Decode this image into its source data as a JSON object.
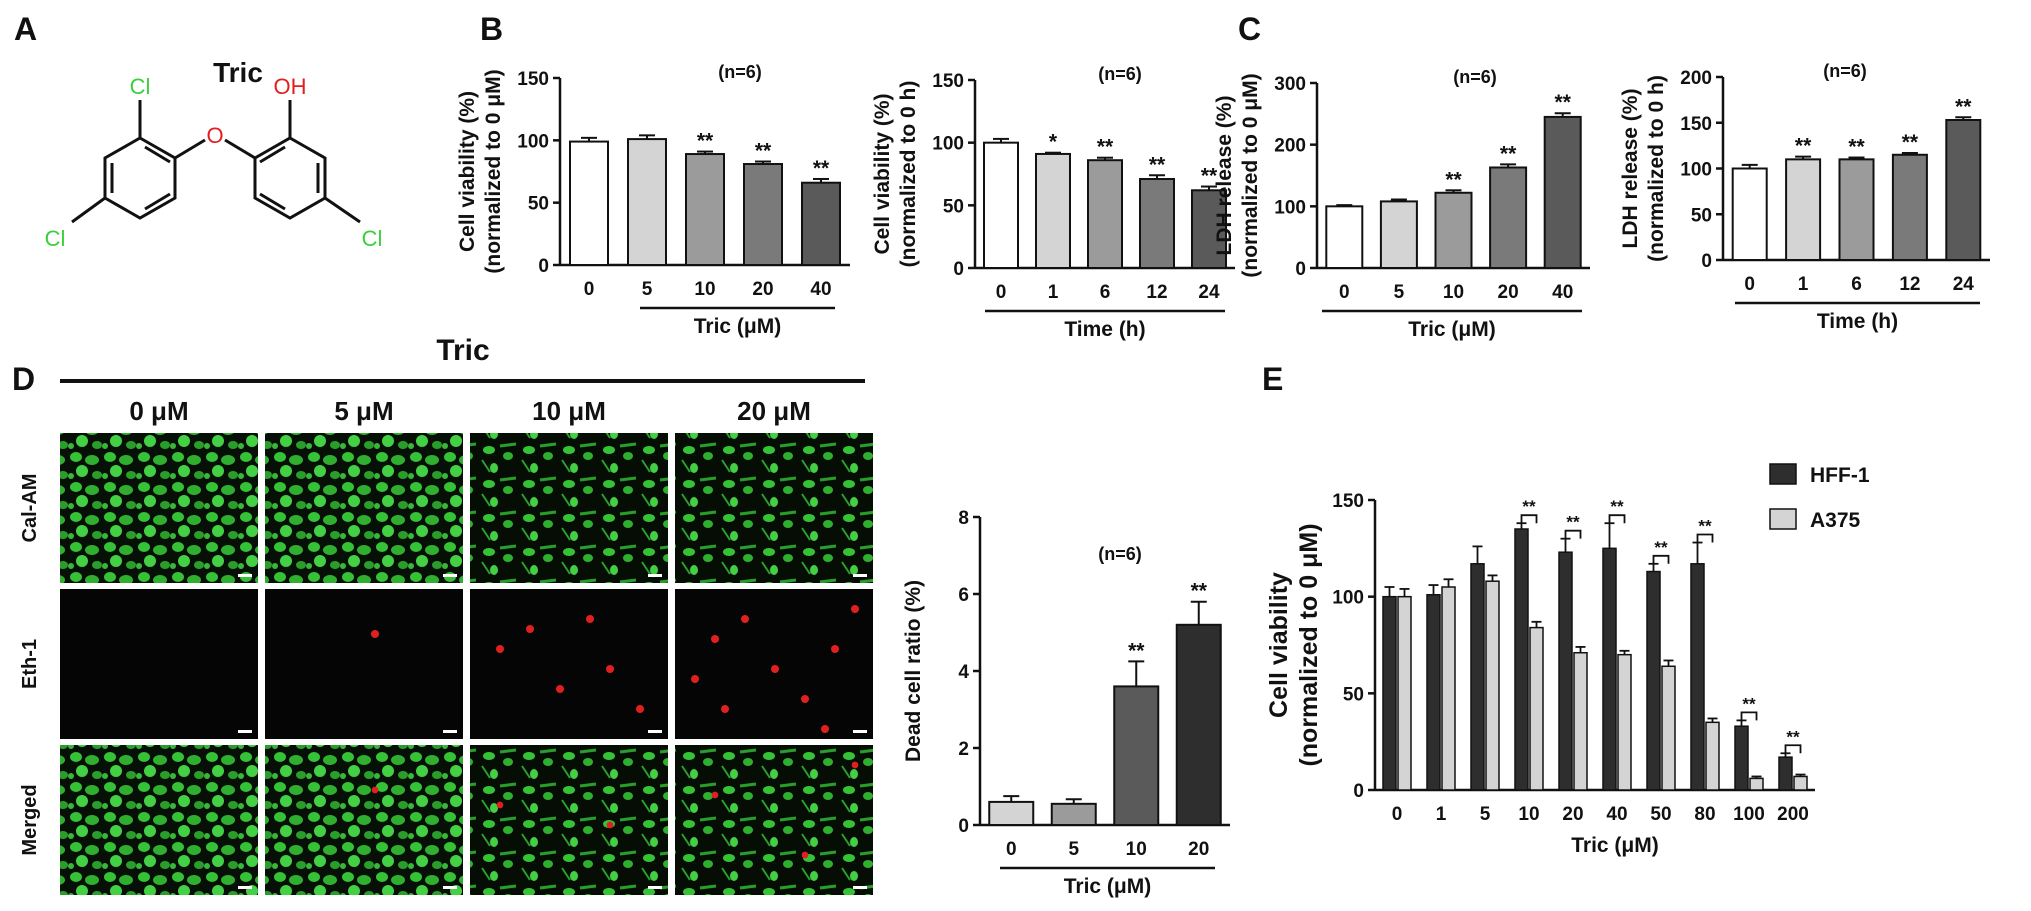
{
  "panels": {
    "A": {
      "letter": "A",
      "title": "Tric",
      "atoms": {
        "cl_top": "Cl",
        "oh": "OH",
        "o": "O",
        "cl_left": "Cl",
        "cl_right": "Cl"
      }
    },
    "B": {
      "letter": "B"
    },
    "C": {
      "letter": "C"
    },
    "D": {
      "letter": "D",
      "treatment": "Tric",
      "columns": [
        "0 μM",
        "5 μM",
        "10 μM",
        "20 μM"
      ],
      "rows": [
        "Cal-AM",
        "Eth-1",
        "Merged"
      ]
    },
    "E": {
      "letter": "E"
    }
  },
  "colors": {
    "white": "#ffffff",
    "light": "#d4d4d4",
    "mid": "#9b9b9b",
    "dark": "#7a7a7a",
    "darker": "#5a5a5a",
    "darkest": "#2e2e2e",
    "green_cl": "#3ccf3c",
    "red_o": "#e02020",
    "micro_green": "#36c236",
    "micro_red": "#e02020"
  },
  "chart_data": [
    {
      "id": "B1",
      "type": "bar",
      "n_label": "(n=6)",
      "categories": [
        "0",
        "5",
        "10",
        "20",
        "40"
      ],
      "values": [
        99,
        101,
        89,
        81,
        66
      ],
      "errors": [
        3,
        3,
        2,
        2,
        3
      ],
      "sig": [
        "",
        "",
        "**",
        "**",
        "**"
      ],
      "colors": [
        "#ffffff",
        "#d4d4d4",
        "#9b9b9b",
        "#7a7a7a",
        "#5a5a5a"
      ],
      "xlabel": "Tric (μM)",
      "ylabel_lines": [
        "Cell viability (%)",
        "(normalized to 0 μM)"
      ],
      "ylim": [
        0,
        150
      ],
      "yticks": [
        0,
        50,
        100,
        150
      ]
    },
    {
      "id": "B2",
      "type": "bar",
      "n_label": "(n=6)",
      "categories": [
        "0",
        "1",
        "6",
        "12",
        "24"
      ],
      "values": [
        100,
        91,
        86,
        71,
        62
      ],
      "errors": [
        3,
        1,
        2,
        3,
        3
      ],
      "sig": [
        "",
        "*",
        "**",
        "**",
        "**"
      ],
      "colors": [
        "#ffffff",
        "#d4d4d4",
        "#9b9b9b",
        "#7a7a7a",
        "#5a5a5a"
      ],
      "xlabel": "Time (h)",
      "ylabel_lines": [
        "Cell viability (%)",
        "(normalized to 0 h)"
      ],
      "ylim": [
        0,
        150
      ],
      "yticks": [
        0,
        50,
        100,
        150
      ]
    },
    {
      "id": "C1",
      "type": "bar",
      "n_label": "(n=6)",
      "categories": [
        "0",
        "5",
        "10",
        "20",
        "40"
      ],
      "values": [
        100,
        108,
        122,
        163,
        245
      ],
      "errors": [
        2,
        3,
        4,
        5,
        6
      ],
      "sig": [
        "",
        "",
        "**",
        "**",
        "**"
      ],
      "colors": [
        "#ffffff",
        "#d4d4d4",
        "#9b9b9b",
        "#7a7a7a",
        "#5a5a5a"
      ],
      "xlabel": "Tric (μM)",
      "ylabel_lines": [
        "LDH release (%)",
        "(normalized to 0 μM)"
      ],
      "ylim": [
        0,
        300
      ],
      "yticks": [
        0,
        100,
        200,
        300
      ]
    },
    {
      "id": "C2",
      "type": "bar",
      "n_label": "(n=6)",
      "categories": [
        "0",
        "1",
        "6",
        "12",
        "24"
      ],
      "values": [
        100,
        110,
        110,
        115,
        153
      ],
      "errors": [
        4,
        3,
        2,
        2,
        3
      ],
      "sig": [
        "",
        "**",
        "**",
        "**",
        "**"
      ],
      "colors": [
        "#ffffff",
        "#d4d4d4",
        "#9b9b9b",
        "#7a7a7a",
        "#5a5a5a"
      ],
      "xlabel": "Time (h)",
      "ylabel_lines": [
        "LDH release (%)",
        "(normalized to 0 h)"
      ],
      "ylim": [
        0,
        200
      ],
      "yticks": [
        0,
        50,
        100,
        150,
        200
      ]
    },
    {
      "id": "D",
      "type": "bar",
      "n_label": "(n=6)",
      "categories": [
        "0",
        "5",
        "10",
        "20"
      ],
      "values": [
        0.6,
        0.55,
        3.6,
        5.2
      ],
      "errors": [
        0.15,
        0.12,
        0.65,
        0.6
      ],
      "sig": [
        "",
        "",
        "**",
        "**"
      ],
      "colors": [
        "#d4d4d4",
        "#9b9b9b",
        "#5a5a5a",
        "#2e2e2e"
      ],
      "xlabel": "Tric (μM)",
      "ylabel_lines": [
        "Dead cell ratio (%)"
      ],
      "ylim": [
        0,
        8
      ],
      "yticks": [
        0,
        2,
        4,
        6,
        8
      ]
    },
    {
      "id": "E",
      "type": "bar",
      "categories": [
        "0",
        "1",
        "5",
        "10",
        "20",
        "40",
        "50",
        "80",
        "100",
        "200"
      ],
      "series": [
        {
          "name": "HFF-1",
          "color": "#2e2e2e",
          "values": [
            100,
            101,
            117,
            135,
            123,
            125,
            113,
            117,
            33,
            17
          ],
          "errors": [
            5,
            5,
            9,
            3,
            7,
            13,
            4,
            11,
            3,
            2
          ]
        },
        {
          "name": "A375",
          "color": "#d4d4d4",
          "values": [
            100,
            105,
            108,
            84,
            71,
            70,
            64,
            35,
            6,
            7
          ],
          "errors": [
            4,
            4,
            3,
            3,
            3,
            2,
            3,
            2,
            1,
            1
          ]
        }
      ],
      "pair_sig": [
        "",
        "",
        "",
        "**",
        "**",
        "**",
        "**",
        "**",
        "**",
        "**"
      ],
      "xlabel": "Tric (μM)",
      "ylabel_lines": [
        "Cell viability",
        "(normalized to 0 μM)"
      ],
      "ylim": [
        0,
        150
      ],
      "yticks": [
        0,
        50,
        100,
        150
      ],
      "legend": "top-right"
    }
  ]
}
